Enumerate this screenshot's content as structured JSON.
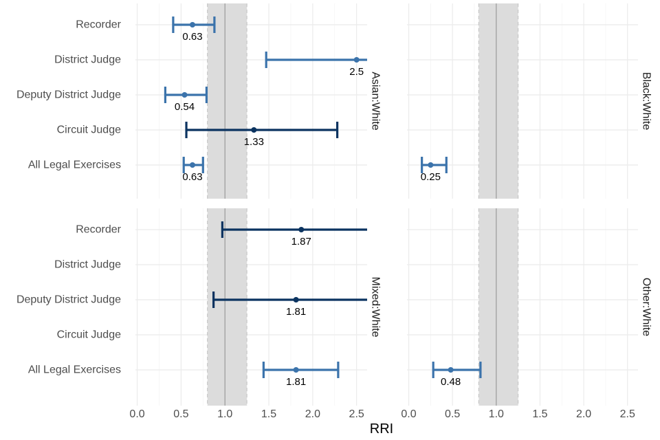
{
  "chart_data": {
    "type": "dot-errorbar-faceted",
    "xlabel": "RRI",
    "xlim": [
      -0.02,
      2.62
    ],
    "x_ticks": [
      "0.0",
      "0.5",
      "1.0",
      "1.5",
      "2.0",
      "2.5"
    ],
    "x_tick_values": [
      0,
      0.5,
      1.0,
      1.5,
      2.0,
      2.5
    ],
    "reference_line": 1.0,
    "reference_band": [
      0.8,
      1.25
    ],
    "categories": [
      "Recorder",
      "District Judge",
      "Deputy District Judge",
      "Circuit Judge",
      "All Legal Exercises"
    ],
    "colors": {
      "light": "#3b73ab",
      "dark": "#0b3360",
      "band": "#dcdcdc",
      "ref": "#999999"
    },
    "facets": [
      {
        "label": "Asian:White",
        "points": [
          {
            "category": "Recorder",
            "value": 0.63,
            "label": "0.63",
            "lower": 0.41,
            "upper": 0.88,
            "shade": "light"
          },
          {
            "category": "District Judge",
            "value": 2.5,
            "label": "2.5",
            "lower": 1.47,
            "upper": 2.7,
            "shade": "light"
          },
          {
            "category": "Deputy District Judge",
            "value": 0.54,
            "label": "0.54",
            "lower": 0.32,
            "upper": 0.79,
            "shade": "light"
          },
          {
            "category": "Circuit Judge",
            "value": 1.33,
            "label": "1.33",
            "lower": 0.56,
            "upper": 2.28,
            "shade": "dark"
          },
          {
            "category": "All Legal Exercises",
            "value": 0.63,
            "label": "0.63",
            "lower": 0.53,
            "upper": 0.75,
            "shade": "light"
          }
        ]
      },
      {
        "label": "Black:White",
        "points": [
          {
            "category": "All Legal Exercises",
            "value": 0.25,
            "label": "0.25",
            "lower": 0.15,
            "upper": 0.43,
            "shade": "light"
          }
        ]
      },
      {
        "label": "Mixed:White",
        "points": [
          {
            "category": "Recorder",
            "value": 1.87,
            "label": "1.87",
            "lower": 0.97,
            "upper": 2.7,
            "shade": "dark"
          },
          {
            "category": "Deputy District Judge",
            "value": 1.81,
            "label": "1.81",
            "lower": 0.87,
            "upper": 2.7,
            "shade": "dark"
          },
          {
            "category": "All Legal Exercises",
            "value": 1.81,
            "label": "1.81",
            "lower": 1.44,
            "upper": 2.29,
            "shade": "light"
          }
        ]
      },
      {
        "label": "Other:White",
        "points": [
          {
            "category": "All Legal Exercises",
            "value": 0.48,
            "label": "0.48",
            "lower": 0.28,
            "upper": 0.82,
            "shade": "light"
          }
        ]
      }
    ]
  }
}
